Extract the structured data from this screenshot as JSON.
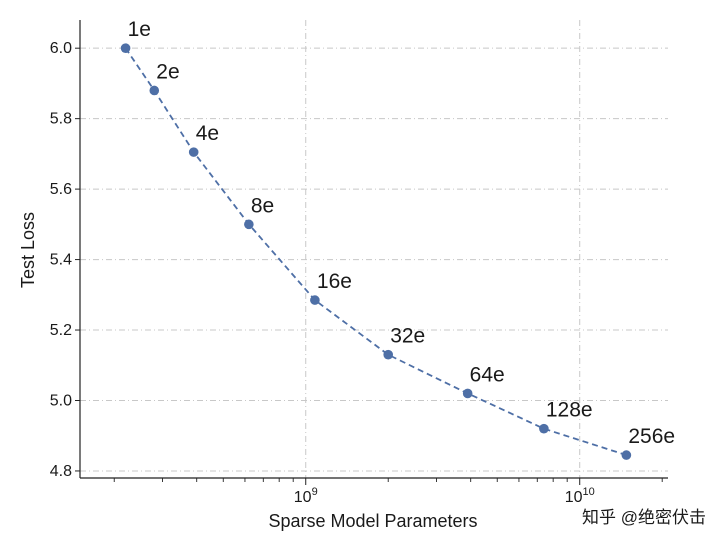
{
  "chart_data": {
    "type": "line",
    "xlabel": "Sparse Model Parameters",
    "ylabel": "Test Loss",
    "x_scale": "log",
    "xlim": [
      150000000,
      21000000000
    ],
    "ylim": [
      4.78,
      6.08
    ],
    "grid": true,
    "y_ticks": [
      4.8,
      5.0,
      5.2,
      5.4,
      5.6,
      5.8,
      6.0
    ],
    "y_tick_labels": [
      "4.8",
      "5.0",
      "5.2",
      "5.4",
      "5.6",
      "5.8",
      "6.0"
    ],
    "x_major_ticks": [
      {
        "value": 1000000000,
        "base": "10",
        "exp": "9"
      },
      {
        "value": 10000000000,
        "base": "10",
        "exp": "10"
      }
    ],
    "series": [
      {
        "color": "#4e6fa6",
        "line_style": "dashed",
        "points": [
          {
            "x": 220000000,
            "y": 6.0,
            "label": "1e"
          },
          {
            "x": 280000000,
            "y": 5.88,
            "label": "2e"
          },
          {
            "x": 390000000,
            "y": 5.705,
            "label": "4e"
          },
          {
            "x": 620000000,
            "y": 5.5,
            "label": "8e"
          },
          {
            "x": 1080000000,
            "y": 5.285,
            "label": "16e"
          },
          {
            "x": 2000000000,
            "y": 5.13,
            "label": "32e"
          },
          {
            "x": 3900000000,
            "y": 5.02,
            "label": "64e"
          },
          {
            "x": 7400000000,
            "y": 4.92,
            "label": "128e"
          },
          {
            "x": 14800000000,
            "y": 4.845,
            "label": "256e"
          }
        ]
      }
    ]
  },
  "watermark": "知乎 @绝密伏击"
}
